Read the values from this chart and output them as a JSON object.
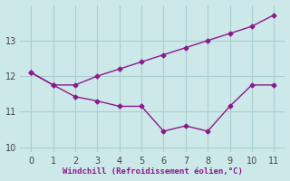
{
  "line1_x": [
    0,
    1,
    2,
    3,
    4,
    5,
    6,
    7,
    8,
    9,
    10,
    11
  ],
  "line1_y": [
    12.1,
    11.75,
    11.75,
    12.0,
    12.2,
    12.4,
    12.6,
    12.8,
    13.0,
    13.2,
    13.4,
    13.72
  ],
  "line2_x": [
    0,
    1,
    2,
    3,
    4,
    5,
    6,
    7,
    8,
    9,
    10,
    11
  ],
  "line2_y": [
    12.1,
    11.75,
    11.42,
    11.3,
    11.15,
    11.15,
    10.45,
    10.6,
    10.45,
    11.15,
    11.75,
    11.75
  ],
  "color": "#8B1A8B",
  "bg_color": "#CCE8E8",
  "grid_color": "#AACECE",
  "xlabel": "Windchill (Refroidissement éolien,°C)",
  "xlabel_color": "#8B1A8B",
  "xlim": [
    -0.5,
    11.5
  ],
  "ylim": [
    9.85,
    14.0
  ],
  "yticks": [
    10,
    11,
    12,
    13
  ],
  "xticks": [
    0,
    1,
    2,
    3,
    4,
    5,
    6,
    7,
    8,
    9,
    10,
    11
  ],
  "marker": "D",
  "markersize": 2.5,
  "linewidth": 1.0
}
